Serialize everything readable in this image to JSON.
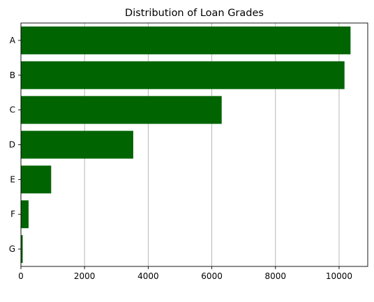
{
  "chart_data": {
    "type": "bar",
    "orientation": "horizontal",
    "title": "Distribution of Loan Grades",
    "xlabel": "",
    "ylabel": "",
    "categories": [
      "A",
      "B",
      "C",
      "D",
      "E",
      "F",
      "G"
    ],
    "values": [
      10360,
      10170,
      6310,
      3530,
      950,
      240,
      55
    ],
    "xlim": [
      0,
      10900
    ],
    "xticks": [
      0,
      2000,
      4000,
      6000,
      8000,
      10000
    ],
    "grid": "vertical",
    "bar_color": "#006400",
    "grid_color": "#b0b0b0"
  }
}
